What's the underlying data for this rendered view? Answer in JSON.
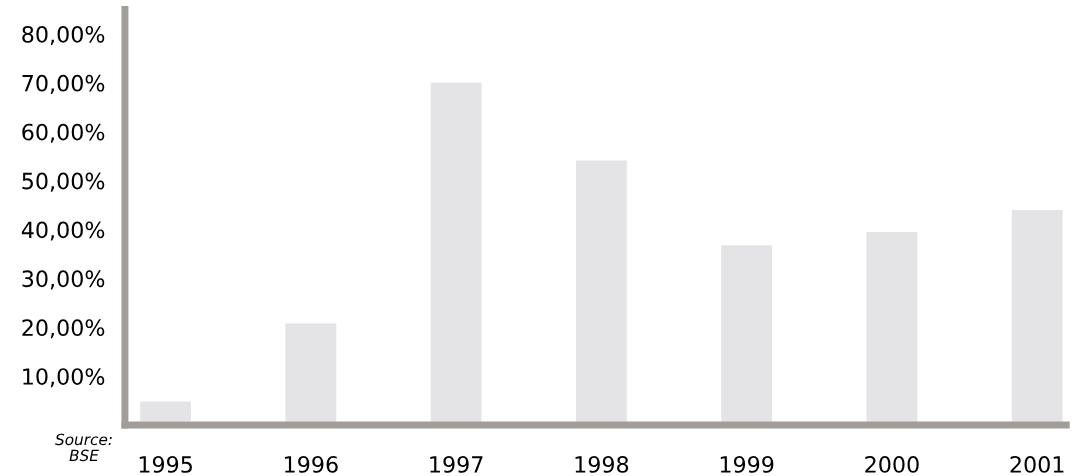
{
  "chart_data": {
    "type": "bar",
    "categories": [
      "1995",
      "1996",
      "1997",
      "1998",
      "1999",
      "2000",
      "2001"
    ],
    "values": [
      4.0,
      20.8,
      70.0,
      54.1,
      36.8,
      39.5,
      44.0
    ],
    "base": [
      0.8,
      0,
      0,
      0,
      0,
      0,
      0
    ],
    "color": "#e4e4e6",
    "ylim": [
      0,
      85
    ],
    "yticks": [
      {
        "value": 10,
        "label": "10,00%"
      },
      {
        "value": 20,
        "label": "20,00%"
      },
      {
        "value": 30,
        "label": "30,00%"
      },
      {
        "value": 40,
        "label": "40,00%"
      },
      {
        "value": 50,
        "label": "50,00%"
      },
      {
        "value": 60,
        "label": "60,00%"
      },
      {
        "value": 70,
        "label": "70,00%"
      },
      {
        "value": 80,
        "label": "80,00%"
      }
    ],
    "grid": false,
    "annotations": [
      "Source:\nBSE"
    ]
  }
}
